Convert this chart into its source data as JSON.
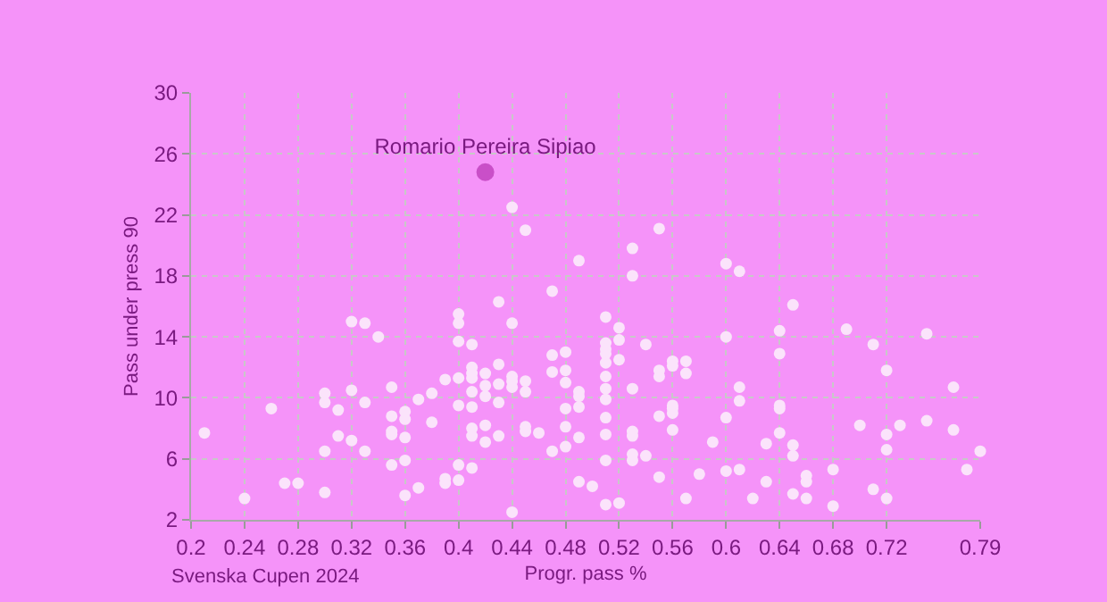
{
  "chart_data": {
    "type": "scatter",
    "xlabel": "Progr. pass %",
    "ylabel": "Pass under press 90",
    "annotations": [
      "Svenska Cupen 2024"
    ],
    "xlim": [
      0.2,
      0.79
    ],
    "xticks": [
      0.2,
      0.24,
      0.28,
      0.32,
      0.36,
      0.4,
      0.44,
      0.48,
      0.52,
      0.56,
      0.6,
      0.64,
      0.68,
      0.72,
      0.79
    ],
    "ylim": [
      2,
      30
    ],
    "yticks": [
      2,
      6,
      10,
      14,
      18,
      22,
      26,
      30
    ],
    "grid": true,
    "marker": "circle",
    "legend": false,
    "series": [
      {
        "color": "#fbe3fb",
        "x": [
          0.21,
          0.24,
          0.26,
          0.27,
          0.28,
          0.3,
          0.3,
          0.3,
          0.3,
          0.31,
          0.31,
          0.32,
          0.32,
          0.32,
          0.33,
          0.33,
          0.33,
          0.34,
          0.35,
          0.35,
          0.35,
          0.35,
          0.35,
          0.36,
          0.36,
          0.36,
          0.36,
          0.36,
          0.37,
          0.37,
          0.38,
          0.38,
          0.39,
          0.39,
          0.39,
          0.4,
          0.4,
          0.4,
          0.4,
          0.4,
          0.4,
          0.4,
          0.41,
          0.41,
          0.41,
          0.41,
          0.41,
          0.41,
          0.41,
          0.41,
          0.41,
          0.42,
          0.42,
          0.42,
          0.42,
          0.42,
          0.43,
          0.43,
          0.43,
          0.43,
          0.43,
          0.44,
          0.44,
          0.44,
          0.44,
          0.44,
          0.45,
          0.45,
          0.45,
          0.45,
          0.46,
          0.47,
          0.47,
          0.47,
          0.48,
          0.48,
          0.48,
          0.48,
          0.48,
          0.48,
          0.44,
          0.45,
          0.47,
          0.49,
          0.53,
          0.53,
          0.55,
          0.6,
          0.61,
          0.65,
          0.51,
          0.52,
          0.64,
          0.69,
          0.75,
          0.49,
          0.49,
          0.49,
          0.49,
          0.49,
          0.5,
          0.51,
          0.51,
          0.51,
          0.51,
          0.51,
          0.51,
          0.51,
          0.51,
          0.51,
          0.51,
          0.51,
          0.52,
          0.52,
          0.52,
          0.53,
          0.53,
          0.53,
          0.53,
          0.53,
          0.54,
          0.54,
          0.55,
          0.55,
          0.55,
          0.55,
          0.56,
          0.56,
          0.56,
          0.56,
          0.56,
          0.56,
          0.57,
          0.57,
          0.57,
          0.58,
          0.59,
          0.6,
          0.6,
          0.6,
          0.61,
          0.61,
          0.61,
          0.62,
          0.63,
          0.63,
          0.64,
          0.64,
          0.64,
          0.64,
          0.65,
          0.65,
          0.65,
          0.66,
          0.66,
          0.66,
          0.68,
          0.68,
          0.7,
          0.71,
          0.71,
          0.72,
          0.72,
          0.72,
          0.72,
          0.73,
          0.75,
          0.77,
          0.77,
          0.78,
          0.79
        ],
        "values": [
          7.7,
          3.4,
          9.3,
          4.4,
          4.4,
          10.3,
          9.7,
          6.5,
          3.8,
          9.2,
          7.5,
          15.0,
          10.5,
          7.2,
          14.9,
          9.7,
          6.5,
          14.0,
          10.7,
          8.8,
          7.8,
          7.6,
          5.6,
          9.1,
          8.6,
          7.4,
          5.9,
          3.6,
          9.9,
          4.1,
          10.3,
          8.4,
          11.2,
          4.7,
          4.4,
          15.5,
          14.9,
          13.7,
          11.3,
          9.5,
          5.6,
          4.6,
          13.5,
          12.0,
          11.6,
          11.3,
          10.4,
          9.4,
          8.0,
          7.5,
          5.4,
          11.6,
          10.8,
          10.1,
          8.2,
          7.1,
          16.3,
          12.2,
          10.9,
          9.7,
          7.5,
          14.9,
          11.4,
          11.1,
          10.7,
          2.5,
          11.1,
          10.4,
          8.1,
          7.8,
          7.7,
          12.8,
          11.7,
          6.5,
          13.0,
          11.8,
          11.0,
          9.3,
          8.1,
          6.8,
          22.5,
          21.0,
          17.0,
          19.0,
          19.8,
          18.0,
          21.1,
          18.8,
          18.3,
          16.1,
          15.3,
          14.6,
          14.4,
          14.5,
          14.2,
          10.4,
          10.1,
          9.4,
          7.4,
          4.5,
          4.2,
          13.6,
          13.2,
          12.9,
          12.3,
          11.4,
          10.6,
          9.9,
          8.7,
          7.6,
          5.9,
          3.0,
          13.8,
          12.5,
          3.1,
          10.6,
          7.8,
          7.5,
          6.3,
          5.9,
          13.5,
          6.2,
          11.8,
          11.4,
          8.8,
          4.8,
          12.4,
          12.1,
          9.5,
          9.3,
          9.0,
          7.9,
          12.4,
          11.6,
          3.4,
          5.0,
          7.1,
          14.0,
          8.7,
          5.2,
          10.7,
          9.8,
          5.3,
          3.4,
          7.0,
          4.5,
          12.9,
          9.5,
          9.3,
          7.7,
          6.9,
          6.2,
          3.7,
          4.9,
          4.5,
          3.4,
          5.3,
          2.9,
          8.2,
          13.5,
          4.0,
          11.8,
          7.6,
          6.6,
          3.4,
          8.2,
          8.5,
          10.7,
          7.9,
          5.3,
          6.5
        ]
      },
      {
        "name": "Romario Pereira Sipiao",
        "color": "#c94fc8",
        "x": [
          0.42
        ],
        "values": [
          24.8
        ]
      }
    ]
  }
}
